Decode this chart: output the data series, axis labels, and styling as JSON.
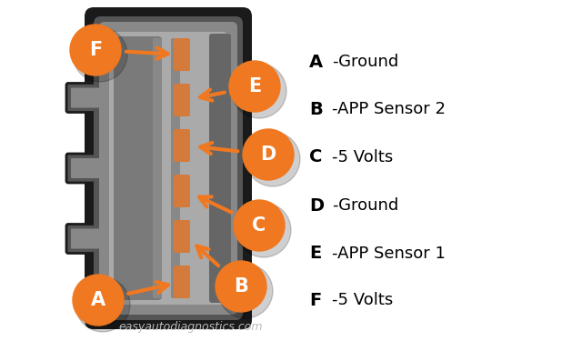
{
  "bg_color": "#ffffff",
  "orange": "#F07820",
  "orange_shadow": "#00000025",
  "connector_outer": "#222222",
  "connector_mid": "#666666",
  "connector_inner": "#999999",
  "connector_inner2": "#7a7a7a",
  "connector_inner3": "#888888",
  "pin_color": "#D47A3A",
  "tab_color": "#888888",
  "pin_labels": [
    "A",
    "B",
    "C",
    "D",
    "E",
    "F"
  ],
  "pin_descriptions": [
    "-Ground",
    "-APP Sensor 2",
    "-5 Volts",
    "-Ground",
    "-APP Sensor 1",
    "-5 Volts"
  ],
  "watermark": "easyautodiagnostics.com",
  "watermark_color": "#BBBBBB",
  "figsize": [
    6.18,
    3.75
  ],
  "dpi": 100,
  "circle_r": 28,
  "font_size_label": 15,
  "font_size_legend_bold": 14,
  "font_size_legend": 13,
  "font_size_watermark": 9
}
